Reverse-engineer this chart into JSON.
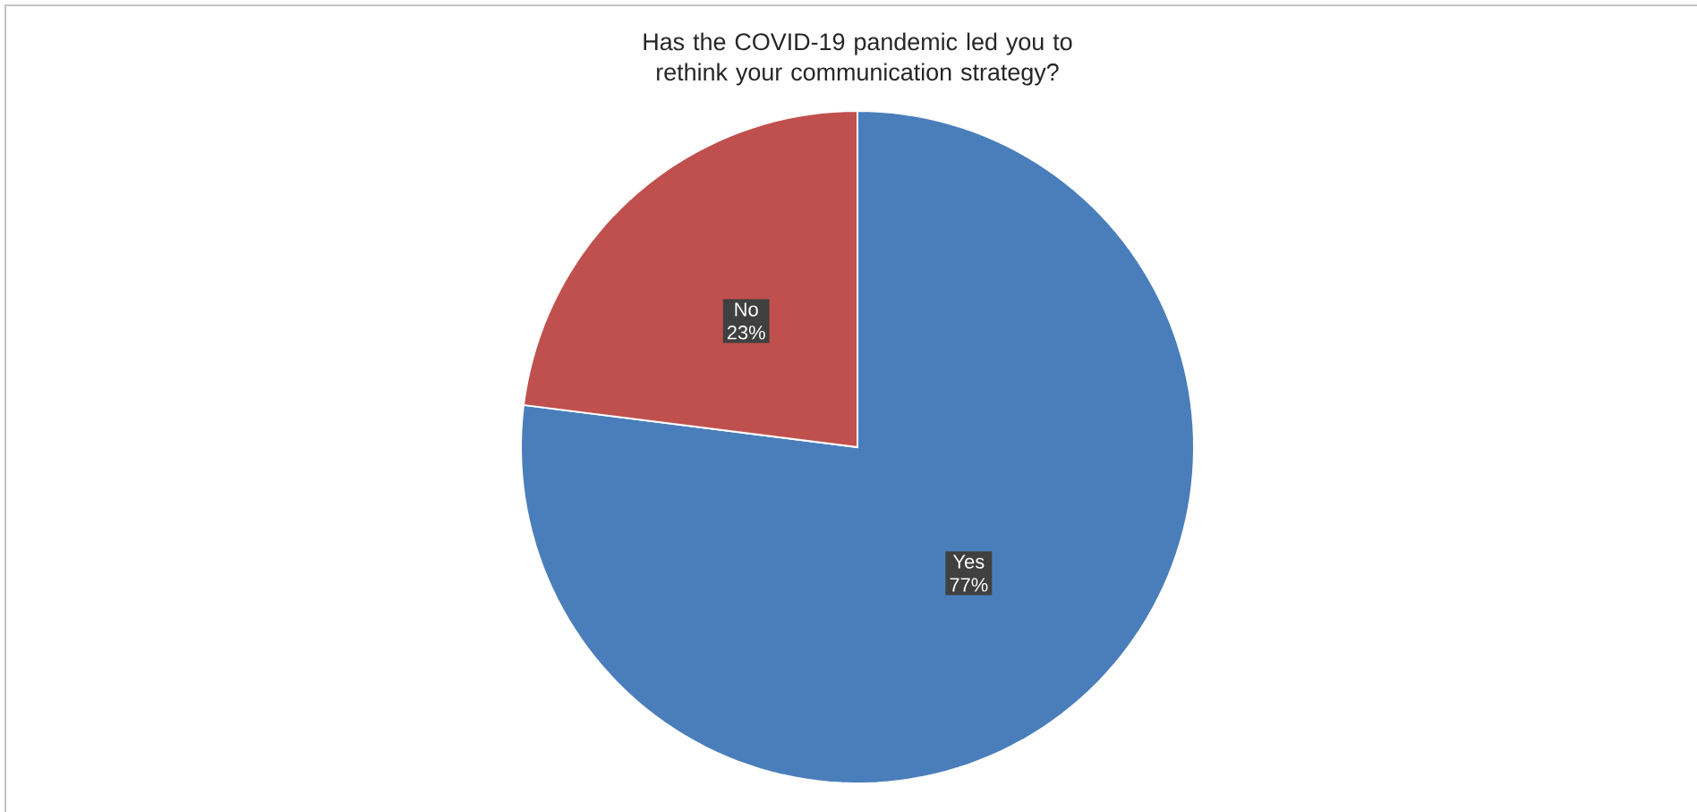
{
  "chart_data": {
    "type": "pie",
    "title": "Has the COVID-19 pandemic led you to rethink your communication strategy?",
    "categories": [
      "Yes",
      "No"
    ],
    "values": [
      77,
      23
    ],
    "colors": [
      "#4a7ebb",
      "#c0504d"
    ],
    "value_labels": [
      "77%",
      "23%"
    ]
  }
}
